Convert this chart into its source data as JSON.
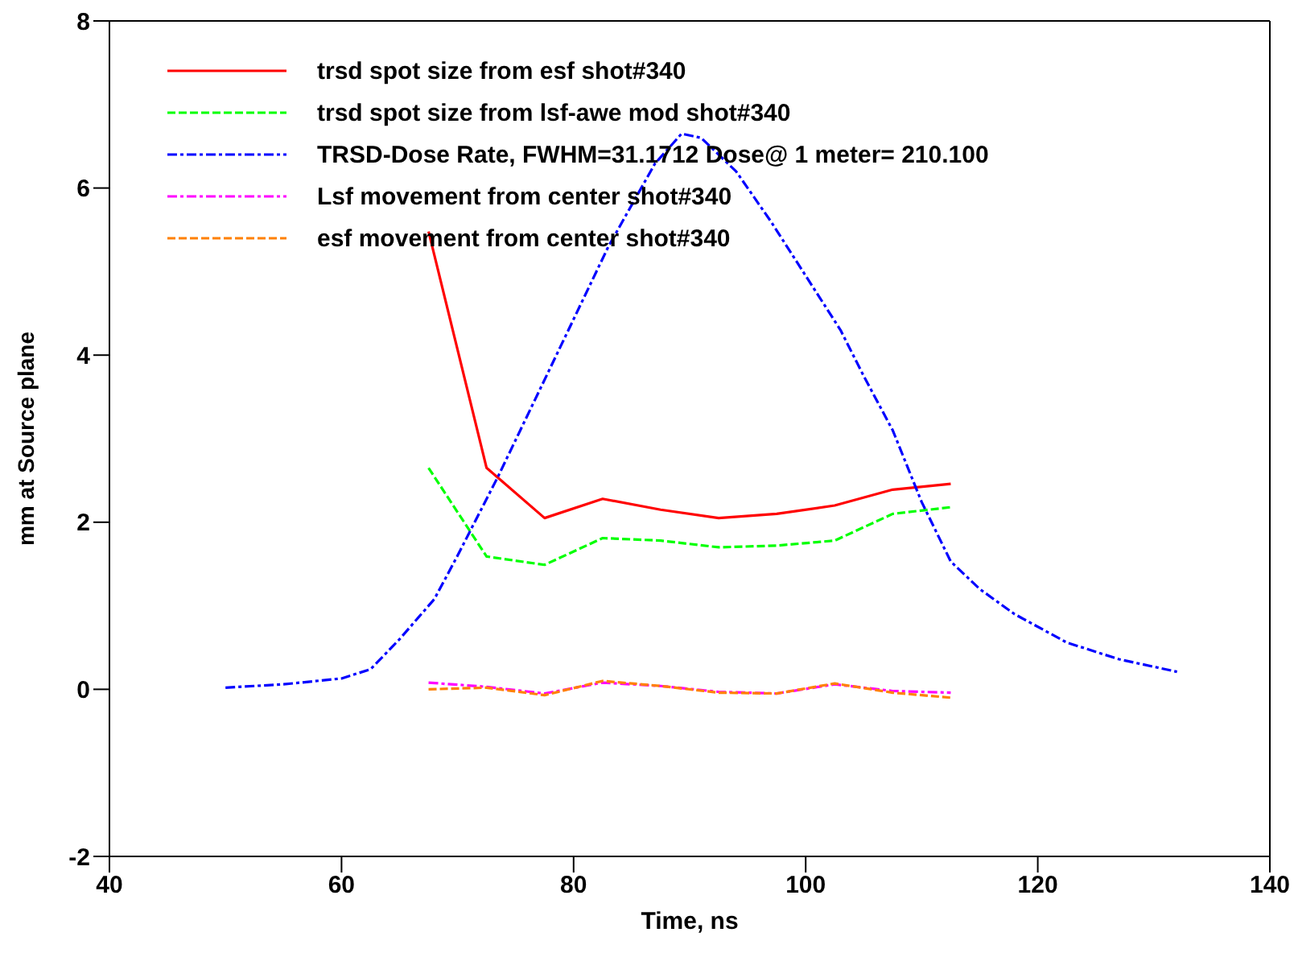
{
  "chart_data": {
    "type": "line",
    "xlabel": "Time, ns",
    "ylabel": "mm at Source plane",
    "xlim": [
      40,
      140
    ],
    "xticks": [
      40,
      60,
      80,
      100,
      120,
      140
    ],
    "ylim": [
      -2,
      8
    ],
    "yticks": [
      -2,
      0,
      2,
      4,
      6,
      8
    ],
    "legend": "top left",
    "marker": "none",
    "series": [
      {
        "name": "trsd spot size from esf shot#340",
        "color": "#ff0000",
        "line_style": "solid",
        "x": [
          67.5,
          72.5,
          77.5,
          82.5,
          87.5,
          92.5,
          97.5,
          102.5,
          107.5,
          112.5
        ],
        "values": [
          5.48,
          2.65,
          2.05,
          2.28,
          2.15,
          2.05,
          2.1,
          2.2,
          2.39,
          2.46
        ]
      },
      {
        "name": "trsd spot size from lsf-awe mod shot#340",
        "color": "#00ff00",
        "line_style": "dashed",
        "x": [
          67.5,
          72.5,
          77.5,
          82.5,
          87.5,
          92.5,
          97.5,
          102.5,
          107.5,
          112.5
        ],
        "values": [
          2.65,
          1.59,
          1.49,
          1.81,
          1.78,
          1.7,
          1.72,
          1.78,
          2.1,
          2.18
        ]
      },
      {
        "name": "TRSD-Dose Rate, FWHM=31.1712 Dose@ 1 meter= 210.100",
        "color": "#0000ff",
        "line_style": "dashdot",
        "x": [
          50,
          55,
          60,
          62.5,
          65,
          68,
          70,
          73.5,
          78,
          83,
          87,
          89.3,
          91,
          94,
          97,
          100,
          103,
          105,
          107.5,
          110,
          112.5,
          115,
          118,
          122.5,
          127,
          132
        ],
        "values": [
          0.02,
          0.06,
          0.13,
          0.24,
          0.6,
          1.08,
          1.6,
          2.55,
          3.85,
          5.3,
          6.29,
          6.65,
          6.6,
          6.2,
          5.6,
          4.95,
          4.3,
          3.75,
          3.1,
          2.24,
          1.53,
          1.2,
          0.9,
          0.56,
          0.36,
          0.21
        ]
      },
      {
        "name": "Lsf movement from center shot#340",
        "color": "#ff00ff",
        "line_style": "dashdot",
        "x": [
          67.5,
          72.5,
          77.5,
          82.5,
          87.5,
          92.5,
          97.5,
          102.5,
          107.5,
          112.5
        ],
        "values": [
          0.08,
          0.03,
          -0.05,
          0.08,
          0.04,
          -0.03,
          -0.05,
          0.06,
          -0.02,
          -0.04
        ]
      },
      {
        "name": "esf movement from center shot#340",
        "color": "#ff8000",
        "line_style": "dashed",
        "x": [
          67.5,
          72.5,
          77.5,
          82.5,
          87.5,
          92.5,
          97.5,
          102.5,
          107.5,
          112.5
        ],
        "values": [
          0.0,
          0.02,
          -0.07,
          0.1,
          0.04,
          -0.04,
          -0.05,
          0.07,
          -0.04,
          -0.1
        ]
      }
    ]
  }
}
